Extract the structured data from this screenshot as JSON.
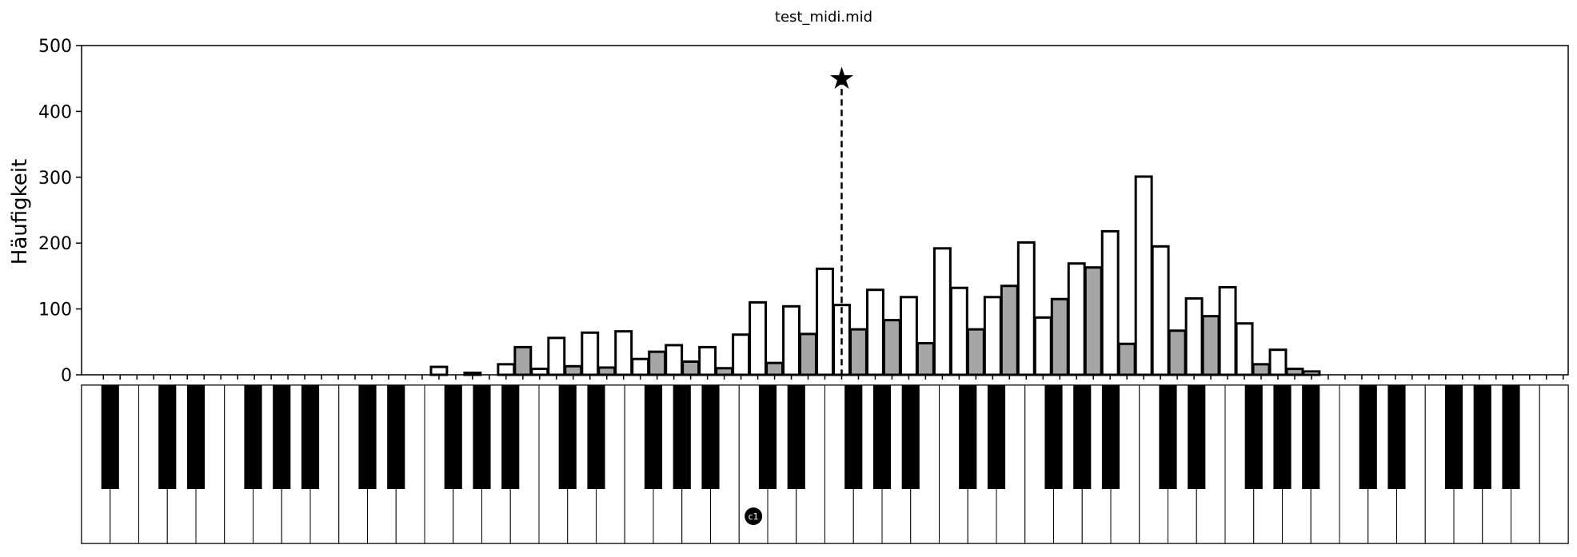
{
  "chart_data": {
    "type": "bar",
    "title": "test_midi.mid",
    "ylabel": "Häufigkeit",
    "xlabel": "",
    "ylim": [
      0,
      500
    ],
    "yticks": [
      0,
      100,
      200,
      300,
      400,
      500
    ],
    "grid": false,
    "legend": "none",
    "midi_range": [
      21,
      108
    ],
    "series": [
      {
        "midi": [
          21,
          22,
          23,
          24,
          25,
          26,
          27,
          28,
          29,
          30,
          31,
          32,
          33,
          34,
          35,
          36,
          37,
          38,
          39,
          40,
          41,
          42,
          43,
          44,
          45,
          46,
          47,
          48,
          49,
          50,
          51,
          52,
          53,
          54,
          55,
          56,
          57,
          58,
          59,
          60,
          61,
          62,
          63,
          64,
          65,
          66,
          67,
          68,
          69,
          70,
          71,
          72,
          73,
          74,
          75,
          76,
          77,
          78,
          79,
          80,
          81,
          82,
          83,
          84,
          85,
          86,
          87,
          88,
          89,
          90,
          91,
          92,
          93,
          94,
          95,
          96,
          97,
          98,
          99,
          100,
          101,
          102,
          103,
          104,
          105,
          106,
          107,
          108
        ],
        "values": [
          0,
          0,
          0,
          0,
          0,
          0,
          0,
          0,
          0,
          0,
          0,
          0,
          0,
          0,
          0,
          0,
          0,
          0,
          0,
          0,
          12,
          0,
          3,
          0,
          16,
          42,
          9,
          56,
          13,
          64,
          11,
          66,
          24,
          35,
          45,
          20,
          42,
          10,
          61,
          110,
          18,
          104,
          62,
          161,
          106,
          69,
          129,
          83,
          118,
          48,
          192,
          132,
          69,
          118,
          135,
          201,
          87,
          115,
          169,
          163,
          218,
          47,
          301,
          195,
          67,
          116,
          89,
          133,
          78,
          16,
          38,
          9,
          5,
          0,
          0,
          0,
          0,
          0,
          0,
          0,
          0,
          0,
          0,
          0,
          0,
          0,
          0,
          0
        ]
      }
    ],
    "annotations": [
      {
        "type": "mean-marker",
        "symbol": "★",
        "midi": 65,
        "value": 450
      },
      {
        "type": "key-label",
        "text": "c1",
        "midi": 60
      }
    ],
    "colors": {
      "white_key_bar": "#ffffff",
      "black_key_bar": "#a6a6a6",
      "bar_edge": "#000000",
      "black_key": "#000000"
    }
  }
}
